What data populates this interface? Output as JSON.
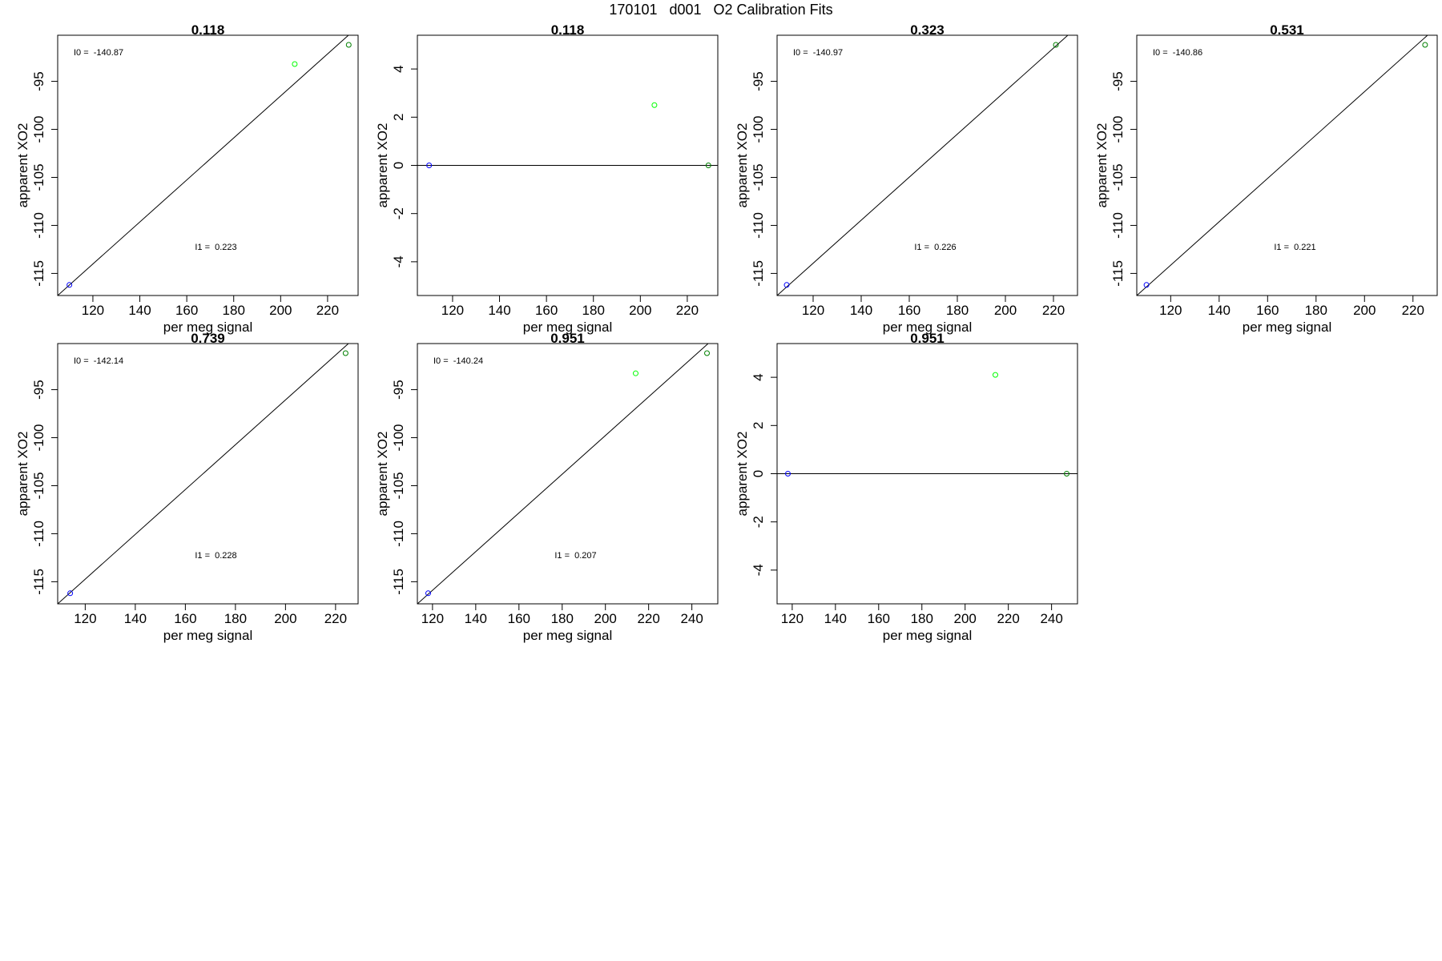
{
  "figure": {
    "title": "170101   d001   O2 Calibration Fits"
  },
  "colors": {
    "blue": "#0000ff",
    "light_green": "#00ff00",
    "dark_green": "#008000",
    "line": "#000000"
  },
  "chart_data": [
    {
      "type": "scatter",
      "title": "0.118",
      "xlabel": "per meg signal",
      "ylabel": "apparent XO2",
      "xticks": [
        120,
        140,
        160,
        180,
        200,
        220
      ],
      "yticks": [
        -115,
        -110,
        -105,
        -100,
        -95
      ],
      "xlim": [
        105,
        233
      ],
      "ylim": [
        -117.3,
        -90.2
      ],
      "points": [
        {
          "x": 110,
          "y": -116.2,
          "color": "blue"
        },
        {
          "x": 206,
          "y": -93.2,
          "color": "light_green"
        },
        {
          "x": 229,
          "y": -91.2,
          "color": "dark_green"
        }
      ],
      "fit_line": [
        [
          105,
          -117.3
        ],
        [
          233,
          -89.3
        ]
      ],
      "annotations": [
        {
          "text": "I0 =  -140.87",
          "anchor": "top-left"
        },
        {
          "text": "I1 =  0.223",
          "anchor": "lower-center"
        }
      ]
    },
    {
      "type": "scatter",
      "title": "0.118",
      "xlabel": "per meg signal",
      "ylabel": "apparent XO2",
      "xticks": [
        120,
        140,
        160,
        180,
        200,
        220
      ],
      "yticks": [
        -4,
        -2,
        0,
        2,
        4
      ],
      "xlim": [
        105,
        233
      ],
      "ylim": [
        -5.4,
        5.4
      ],
      "points": [
        {
          "x": 110,
          "y": 0,
          "color": "blue"
        },
        {
          "x": 206,
          "y": 2.5,
          "color": "light_green"
        },
        {
          "x": 229,
          "y": 0,
          "color": "dark_green"
        }
      ],
      "fit_line": [
        [
          105,
          0
        ],
        [
          233,
          0
        ]
      ],
      "annotations": []
    },
    {
      "type": "scatter",
      "title": "0.323",
      "xlabel": "per meg signal",
      "ylabel": "apparent XO2",
      "xticks": [
        120,
        140,
        160,
        180,
        200,
        220
      ],
      "yticks": [
        -115,
        -110,
        -105,
        -100,
        -95
      ],
      "xlim": [
        105,
        230
      ],
      "ylim": [
        -117.3,
        -90.2
      ],
      "points": [
        {
          "x": 109,
          "y": -116.2,
          "color": "blue"
        },
        {
          "x": 221,
          "y": -91.2,
          "color": "dark_green"
        }
      ],
      "fit_line": [
        [
          105,
          -117.3
        ],
        [
          230,
          -89.3
        ]
      ],
      "annotations": [
        {
          "text": "I0 =  -140.97",
          "anchor": "top-left"
        },
        {
          "text": "I1 =  0.226",
          "anchor": "lower-center"
        }
      ]
    },
    {
      "type": "scatter",
      "title": "0.531",
      "xlabel": "per meg signal",
      "ylabel": "apparent XO2",
      "xticks": [
        120,
        140,
        160,
        180,
        200,
        220
      ],
      "yticks": [
        -115,
        -110,
        -105,
        -100,
        -95
      ],
      "xlim": [
        106,
        230
      ],
      "ylim": [
        -117.3,
        -90.2
      ],
      "points": [
        {
          "x": 110,
          "y": -116.2,
          "color": "blue"
        },
        {
          "x": 225,
          "y": -91.2,
          "color": "dark_green"
        }
      ],
      "fit_line": [
        [
          106,
          -117.3
        ],
        [
          230,
          -89.3
        ]
      ],
      "annotations": [
        {
          "text": "I0 =  -140.86",
          "anchor": "top-left"
        },
        {
          "text": "I1 =  0.221",
          "anchor": "lower-center"
        }
      ]
    },
    {
      "type": "scatter",
      "title": "0.739",
      "xlabel": "per meg signal",
      "ylabel": "apparent XO2",
      "xticks": [
        120,
        140,
        160,
        180,
        200,
        220
      ],
      "yticks": [
        -115,
        -110,
        -105,
        -100,
        -95
      ],
      "xlim": [
        109,
        229
      ],
      "ylim": [
        -117.3,
        -90.2
      ],
      "points": [
        {
          "x": 114,
          "y": -116.2,
          "color": "blue"
        },
        {
          "x": 224,
          "y": -91.2,
          "color": "dark_green"
        }
      ],
      "fit_line": [
        [
          109,
          -117.3
        ],
        [
          229,
          -89.3
        ]
      ],
      "annotations": [
        {
          "text": "I0 =  -142.14",
          "anchor": "top-left"
        },
        {
          "text": "I1 =  0.228",
          "anchor": "lower-center"
        }
      ]
    },
    {
      "type": "scatter",
      "title": "0.951",
      "xlabel": "per meg signal",
      "ylabel": "apparent XO2",
      "xticks": [
        120,
        140,
        160,
        180,
        200,
        220,
        240
      ],
      "yticks": [
        -115,
        -110,
        -105,
        -100,
        -95
      ],
      "xlim": [
        113,
        252
      ],
      "ylim": [
        -117.3,
        -90.2
      ],
      "points": [
        {
          "x": 118,
          "y": -116.2,
          "color": "blue"
        },
        {
          "x": 214,
          "y": -93.3,
          "color": "light_green"
        },
        {
          "x": 247,
          "y": -91.2,
          "color": "dark_green"
        }
      ],
      "fit_line": [
        [
          113,
          -117.3
        ],
        [
          252,
          -89.3
        ]
      ],
      "annotations": [
        {
          "text": "I0 =  -140.24",
          "anchor": "top-left"
        },
        {
          "text": "I1 =  0.207",
          "anchor": "lower-center"
        }
      ]
    },
    {
      "type": "scatter",
      "title": "0.951",
      "xlabel": "per meg signal",
      "ylabel": "apparent XO2",
      "xticks": [
        120,
        140,
        160,
        180,
        200,
        220,
        240
      ],
      "yticks": [
        -4,
        -2,
        0,
        2,
        4
      ],
      "xlim": [
        113,
        252
      ],
      "ylim": [
        -5.4,
        5.4
      ],
      "points": [
        {
          "x": 118,
          "y": 0,
          "color": "blue"
        },
        {
          "x": 214,
          "y": 4.1,
          "color": "light_green"
        },
        {
          "x": 247,
          "y": 0,
          "color": "dark_green"
        }
      ],
      "fit_line": [
        [
          113,
          0
        ],
        [
          252,
          0
        ]
      ],
      "annotations": []
    }
  ]
}
